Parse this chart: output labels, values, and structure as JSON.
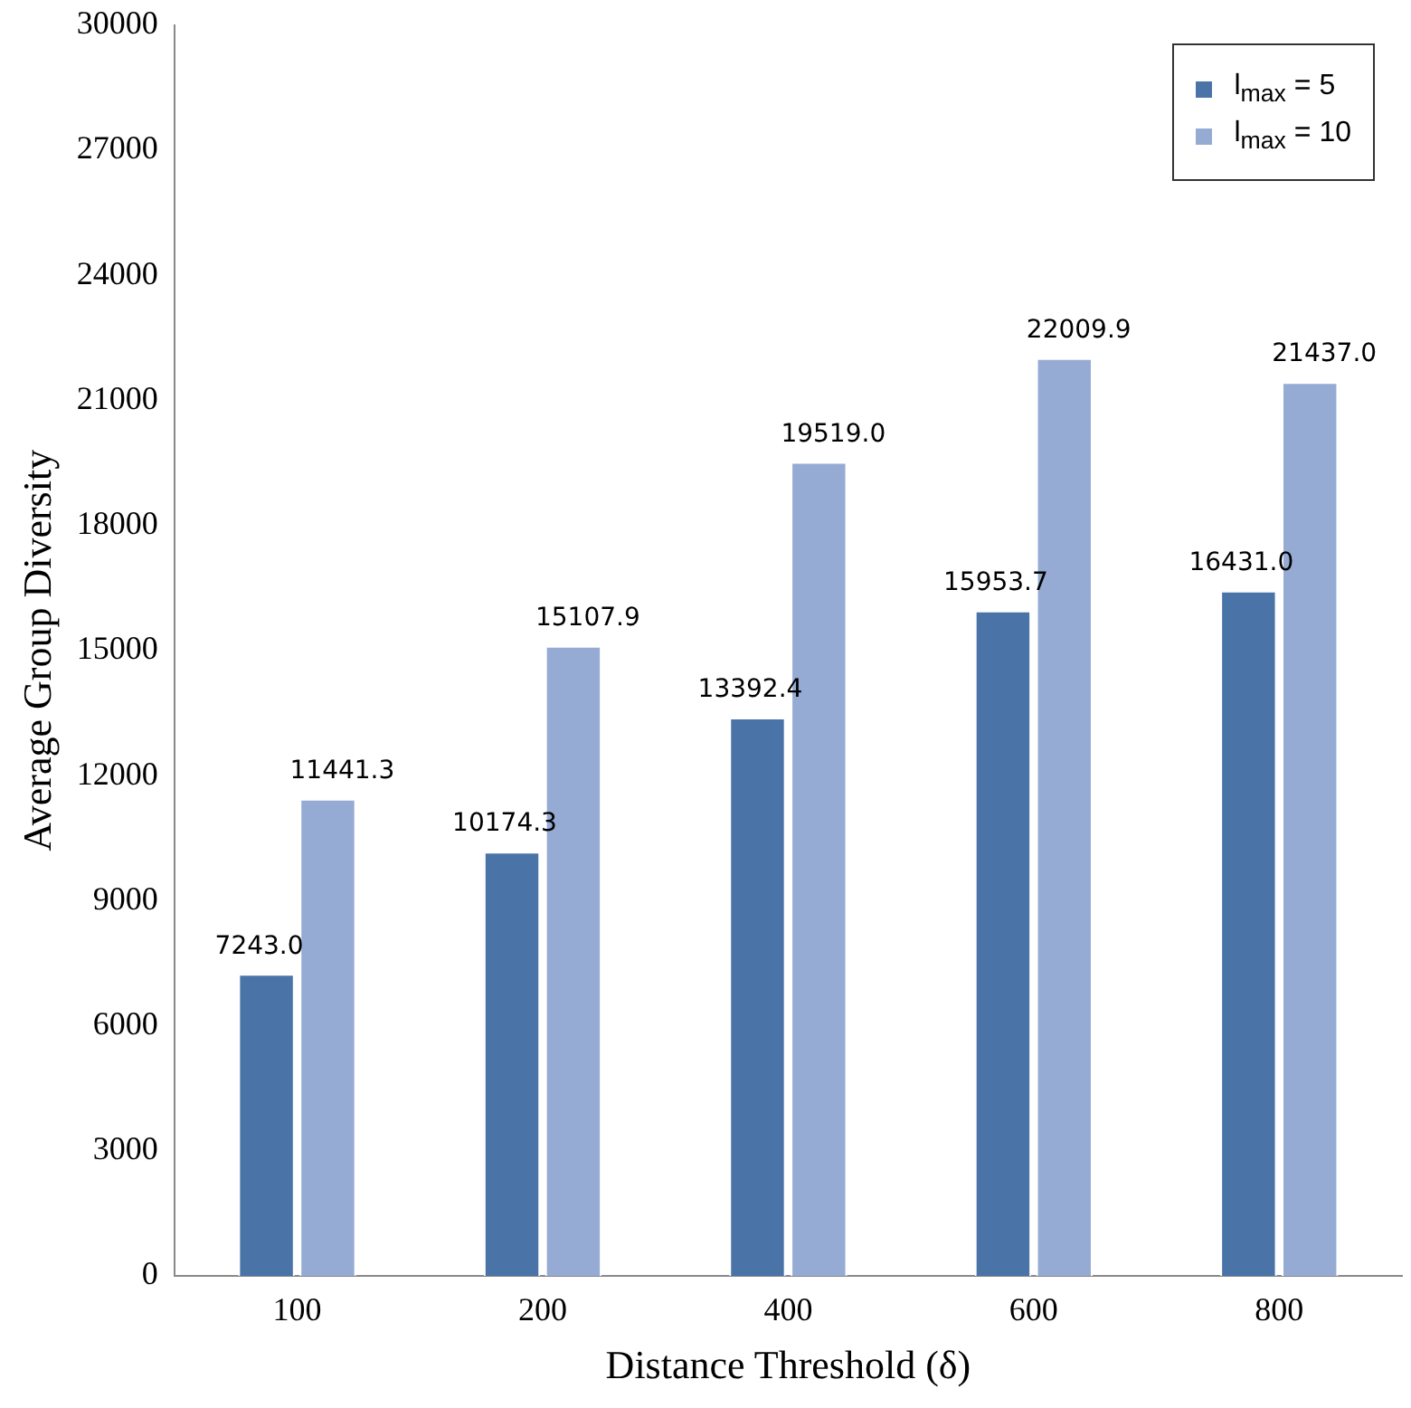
{
  "chart_data": {
    "type": "bar",
    "xlabel": "Distance Threshold (δ)",
    "ylabel": "Average Group Diversity",
    "categories": [
      "100",
      "200",
      "400",
      "600",
      "800"
    ],
    "series": [
      {
        "name": "l$_{max}$ = 5",
        "color": "#4a74a8",
        "values": [
          7243.0,
          10174.3,
          13392.4,
          15953.7,
          16431.0
        ],
        "value_labels": [
          "7243.0",
          "10174.3",
          "13392.4",
          "15953.7",
          "16431.0"
        ]
      },
      {
        "name": "l$_{max}$ = 10",
        "color": "#95abd4",
        "values": [
          11441.3,
          15107.9,
          19519.0,
          22009.9,
          21437.0
        ],
        "value_labels": [
          "11441.3",
          "15107.9",
          "19519.0",
          "22009.9",
          "21437.0"
        ]
      }
    ],
    "ylim": [
      0,
      30000
    ],
    "yticks": [
      0,
      3000,
      6000,
      9000,
      12000,
      15000,
      18000,
      21000,
      24000,
      27000,
      30000
    ],
    "grid": false,
    "legend": "top right"
  }
}
